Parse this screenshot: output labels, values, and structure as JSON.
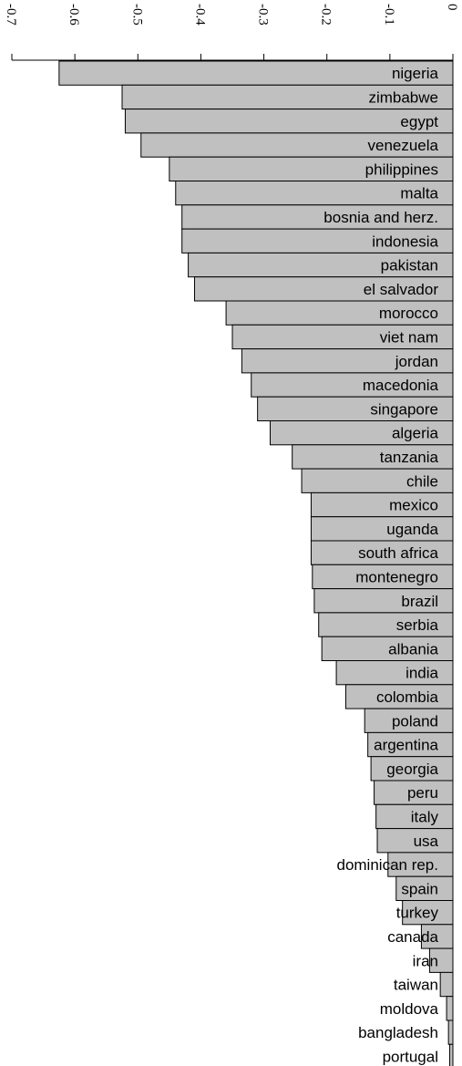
{
  "chart_data": {
    "type": "bar",
    "orientation": "horizontal",
    "value_axis_position": "top",
    "value_axis_ticks": [
      "-0.7",
      "-0.6",
      "-0.5",
      "-0.4",
      "-0.3",
      "-0.2",
      "-0.1",
      "0"
    ],
    "value_axis_tick_values": [
      -0.7,
      -0.6,
      -0.5,
      -0.4,
      -0.3,
      -0.2,
      -0.1,
      0
    ],
    "value_axis_label_rotation": "rotated 90° clockwise",
    "xlim": [
      -0.7,
      0
    ],
    "grid": false,
    "bar_color": "#c0c0c0",
    "categories": [
      "nigeria",
      "zimbabwe",
      "egypt",
      "venezuela",
      "philippines",
      "malta",
      "bosnia and herz.",
      "indonesia",
      "pakistan",
      "el salvador",
      "morocco",
      "viet nam",
      "jordan",
      "macedonia",
      "singapore",
      "algeria",
      "tanzania",
      "chile",
      "mexico",
      "uganda",
      "south africa",
      "montenegro",
      "brazil",
      "serbia",
      "albania",
      "india",
      "colombia",
      "poland",
      "argentina",
      "georgia",
      "peru",
      "italy",
      "usa",
      "dominican rep.",
      "spain",
      "turkey",
      "canada",
      "iran",
      "taiwan",
      "moldova",
      "bangladesh",
      "portugal"
    ],
    "values": [
      -0.625,
      -0.525,
      -0.52,
      -0.495,
      -0.45,
      -0.44,
      -0.43,
      -0.43,
      -0.42,
      -0.41,
      -0.36,
      -0.35,
      -0.335,
      -0.32,
      -0.31,
      -0.29,
      -0.255,
      -0.24,
      -0.225,
      -0.225,
      -0.225,
      -0.223,
      -0.22,
      -0.213,
      -0.208,
      -0.185,
      -0.17,
      -0.14,
      -0.135,
      -0.13,
      -0.125,
      -0.122,
      -0.12,
      -0.103,
      -0.09,
      -0.08,
      -0.05,
      -0.037,
      -0.02,
      -0.01,
      -0.007,
      -0.005
    ]
  }
}
